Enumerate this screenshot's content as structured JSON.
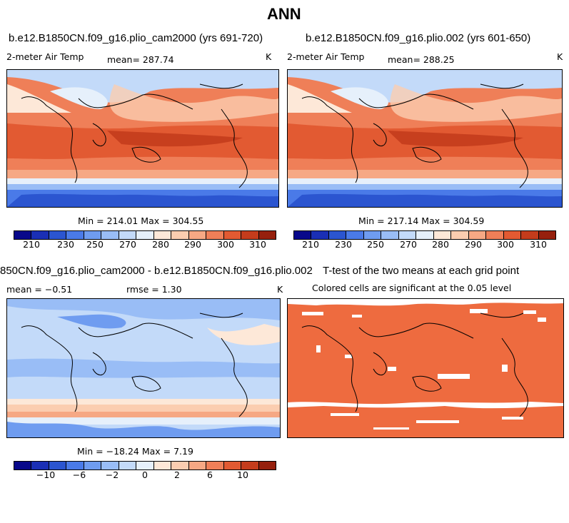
{
  "figure_title": "ANN",
  "panels": {
    "top_left": {
      "title": "b.e12.B1850CN.f09_g16.plio_cam2000 (yrs 691-720)",
      "variable": "2-meter Air Temp",
      "mean_label": "mean= 287.74",
      "units": "K",
      "minmax": "Min = 214.01 Max = 304.55"
    },
    "top_right": {
      "title": "b.e12.B1850CN.f09_g16.plio.002 (yrs 601-650)",
      "variable": "2-meter Air Temp",
      "mean_label": "mean= 288.25",
      "units": "K",
      "minmax": "Min = 217.14 Max = 304.59"
    },
    "bottom_left": {
      "title": "850CN.f09_g16.plio_cam2000 - b.e12.B1850CN.f09_g16.plio.002",
      "mean_label": "mean = −0.51",
      "rmse_label": "rmse =   1.30",
      "units": "K",
      "minmax": "Min = −18.24 Max =   7.19"
    },
    "bottom_right": {
      "title": "T-test of the two means at each grid point",
      "subtitle": "Colored cells are significant at the 0.05 level"
    }
  },
  "colorbars": {
    "temperature": {
      "colors": [
        "#08088a",
        "#1a2fb5",
        "#2b55d0",
        "#4a7ae8",
        "#6f9cf0",
        "#99bdf6",
        "#c3daf9",
        "#e6f0fb",
        "#fde8d8",
        "#fbcdb0",
        "#f6a884",
        "#ef7f58",
        "#e25a32",
        "#c43c1c",
        "#96200d"
      ],
      "ticks": [
        "210",
        "230",
        "250",
        "270",
        "280",
        "290",
        "300",
        "310"
      ]
    },
    "difference": {
      "colors": [
        "#08088a",
        "#1a2fb5",
        "#2b55d0",
        "#4a7ae8",
        "#6f9cf0",
        "#99bdf6",
        "#c3daf9",
        "#e6f0fb",
        "#fde8d8",
        "#fbcdb0",
        "#f6a884",
        "#ef7f58",
        "#e25a32",
        "#c43c1c",
        "#96200d"
      ],
      "ticks": [
        "−10",
        "−6",
        "−2",
        "0",
        "2",
        "6",
        "10"
      ]
    }
  },
  "ttest_color": "#ee6b3f"
}
